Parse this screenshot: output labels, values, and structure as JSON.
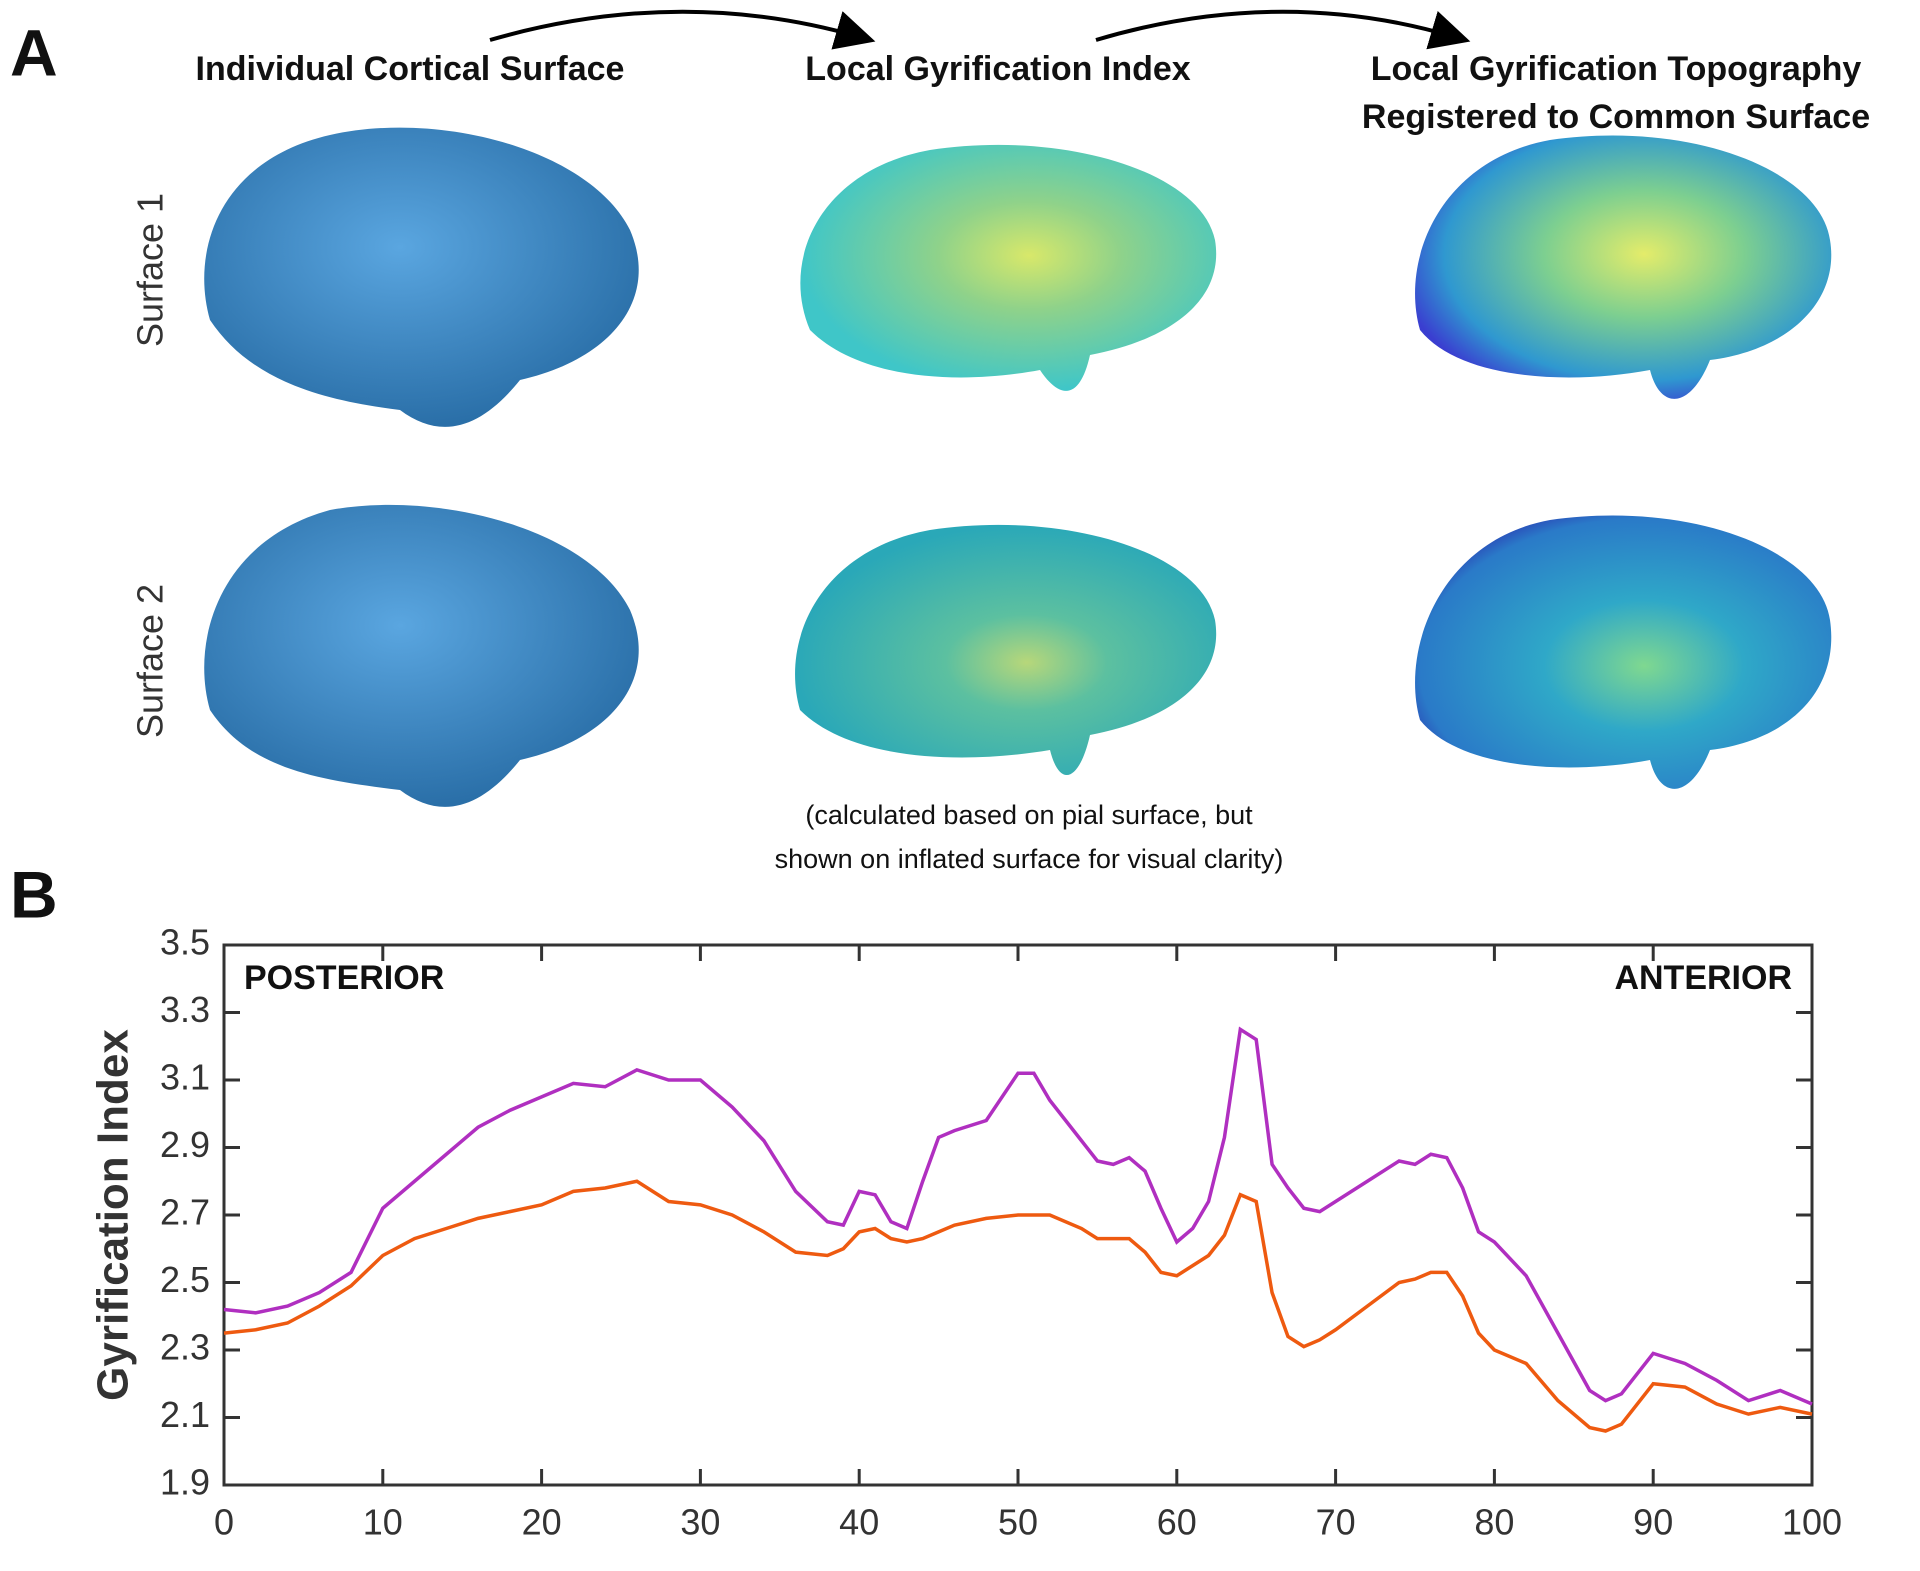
{
  "panel_a": {
    "label": "A",
    "headings": [
      "Individual Cortical Surface",
      "Local Gyrification Index",
      "Local Gyrification Topography",
      "Registered to Common Surface"
    ],
    "rows": [
      {
        "label": "Surface 1",
        "color": "#b02fc0"
      },
      {
        "label": "Surface 2",
        "color": "#ee5a10"
      }
    ],
    "note": [
      "(calculated based on pial surface, but",
      "shown on inflated surface for visual clarity)"
    ]
  },
  "chart_data": {
    "type": "line",
    "panel_label": "B",
    "ylabel": "Gyrification Index",
    "annotations": [
      "POSTERIOR",
      "ANTERIOR"
    ],
    "x": [
      0,
      2,
      4,
      6,
      8,
      10,
      12,
      14,
      16,
      18,
      20,
      22,
      24,
      26,
      28,
      30,
      32,
      34,
      36,
      38,
      39,
      40,
      41,
      42,
      43,
      44,
      45,
      46,
      48,
      50,
      51,
      52,
      54,
      55,
      56,
      57,
      58,
      59,
      60,
      61,
      62,
      63,
      64,
      65,
      66,
      67,
      68,
      69,
      70,
      72,
      74,
      75,
      76,
      77,
      78,
      79,
      80,
      82,
      84,
      86,
      87,
      88,
      90,
      92,
      94,
      96,
      98,
      100
    ],
    "series": [
      {
        "name": "Surface 1",
        "color": "#b02fc0",
        "values": [
          2.42,
          2.41,
          2.43,
          2.47,
          2.53,
          2.72,
          2.8,
          2.88,
          2.96,
          3.01,
          3.05,
          3.09,
          3.08,
          3.13,
          3.1,
          3.1,
          3.02,
          2.92,
          2.77,
          2.68,
          2.67,
          2.77,
          2.76,
          2.68,
          2.66,
          2.8,
          2.93,
          2.95,
          2.98,
          3.12,
          3.12,
          3.04,
          2.92,
          2.86,
          2.85,
          2.87,
          2.83,
          2.72,
          2.62,
          2.66,
          2.74,
          2.93,
          3.25,
          3.22,
          2.85,
          2.78,
          2.72,
          2.71,
          2.74,
          2.8,
          2.86,
          2.85,
          2.88,
          2.87,
          2.78,
          2.65,
          2.62,
          2.52,
          2.35,
          2.18,
          2.15,
          2.17,
          2.29,
          2.26,
          2.21,
          2.15,
          2.18,
          2.14
        ]
      },
      {
        "name": "Surface 2",
        "color": "#ee5a10",
        "values": [
          2.35,
          2.36,
          2.38,
          2.43,
          2.49,
          2.58,
          2.63,
          2.66,
          2.69,
          2.71,
          2.73,
          2.77,
          2.78,
          2.8,
          2.74,
          2.73,
          2.7,
          2.65,
          2.59,
          2.58,
          2.6,
          2.65,
          2.66,
          2.63,
          2.62,
          2.63,
          2.65,
          2.67,
          2.69,
          2.7,
          2.7,
          2.7,
          2.66,
          2.63,
          2.63,
          2.63,
          2.59,
          2.53,
          2.52,
          2.55,
          2.58,
          2.64,
          2.76,
          2.74,
          2.47,
          2.34,
          2.31,
          2.33,
          2.36,
          2.43,
          2.5,
          2.51,
          2.53,
          2.53,
          2.46,
          2.35,
          2.3,
          2.26,
          2.15,
          2.07,
          2.06,
          2.08,
          2.2,
          2.19,
          2.14,
          2.11,
          2.13,
          2.11
        ]
      }
    ],
    "xlim": [
      0,
      100
    ],
    "xticks": [
      0,
      10,
      20,
      30,
      40,
      50,
      60,
      70,
      80,
      90,
      100
    ],
    "ylim": [
      1.9,
      3.5
    ],
    "yticks": [
      1.9,
      2.1,
      2.3,
      2.5,
      2.7,
      2.9,
      3.1,
      3.3,
      3.5
    ]
  }
}
